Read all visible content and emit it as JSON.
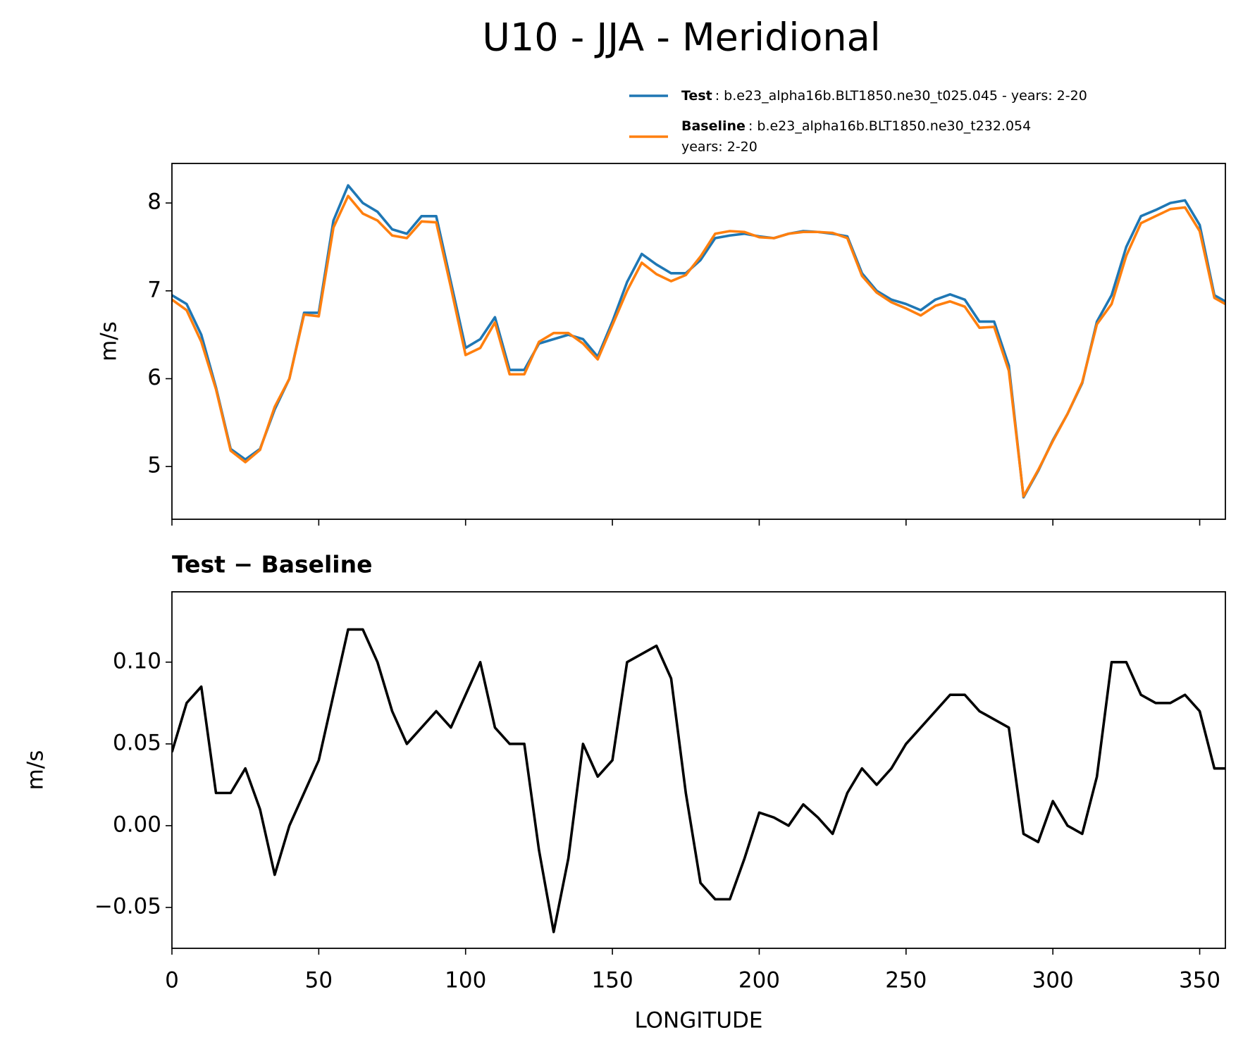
{
  "title": "U10 - JJA - Meridional",
  "chart_data": [
    {
      "type": "line",
      "ylabel": "m/s",
      "xlim": [
        0,
        358.75
      ],
      "xticks": [
        0,
        50,
        100,
        150,
        200,
        250,
        300,
        350
      ],
      "xtick_labels": false,
      "ylim": [
        4.4,
        8.45
      ],
      "yticks": [
        5,
        6,
        7,
        8
      ],
      "legend": "above right",
      "x": [
        0,
        5,
        10,
        15,
        20,
        25,
        30,
        35,
        40,
        45,
        50,
        55,
        60,
        65,
        70,
        75,
        80,
        85,
        90,
        95,
        100,
        105,
        110,
        115,
        120,
        125,
        130,
        135,
        140,
        145,
        150,
        155,
        160,
        165,
        170,
        175,
        180,
        185,
        190,
        195,
        200,
        205,
        210,
        215,
        220,
        225,
        230,
        235,
        240,
        245,
        250,
        255,
        260,
        265,
        270,
        275,
        280,
        285,
        290,
        295,
        300,
        305,
        310,
        315,
        320,
        325,
        330,
        335,
        340,
        345,
        350,
        355,
        358.75
      ],
      "series": [
        {
          "name": "Test",
          "description": [
            ": b.e23_alpha16b.BLT1850.ne30_t025.045 - years: 2-20"
          ],
          "color": "#1f77b4",
          "values": [
            6.95,
            6.85,
            6.5,
            5.9,
            5.2,
            5.08,
            5.2,
            5.65,
            6.0,
            6.75,
            6.75,
            7.8,
            8.2,
            8.0,
            7.9,
            7.7,
            7.65,
            7.85,
            7.85,
            7.1,
            6.35,
            6.45,
            6.7,
            6.1,
            6.1,
            6.4,
            6.45,
            6.5,
            6.45,
            6.25,
            6.65,
            7.1,
            7.42,
            7.3,
            7.2,
            7.2,
            7.35,
            7.6,
            7.63,
            7.65,
            7.62,
            7.6,
            7.65,
            7.68,
            7.67,
            7.65,
            7.62,
            7.2,
            7.0,
            6.9,
            6.85,
            6.78,
            6.9,
            6.96,
            6.9,
            6.65,
            6.65,
            6.15,
            4.65,
            4.95,
            5.3,
            5.6,
            5.95,
            6.65,
            6.95,
            7.5,
            7.85,
            7.92,
            8.0,
            8.03,
            7.75,
            6.95,
            6.88
          ]
        },
        {
          "name": "Baseline",
          "description": [
            ": b.e23_alpha16b.BLT1850.ne30_t232.054",
            "years: 2-20"
          ],
          "color": "#ff7f0e",
          "values": [
            6.9,
            6.78,
            6.42,
            5.88,
            5.18,
            5.05,
            5.19,
            5.68,
            6.0,
            6.73,
            6.71,
            7.72,
            8.08,
            7.88,
            7.8,
            7.63,
            7.6,
            7.79,
            7.78,
            7.04,
            6.27,
            6.35,
            6.64,
            6.05,
            6.05,
            6.42,
            6.52,
            6.52,
            6.4,
            6.22,
            6.61,
            7.0,
            7.32,
            7.19,
            7.11,
            7.18,
            7.39,
            7.65,
            7.68,
            7.67,
            7.61,
            7.6,
            7.65,
            7.67,
            7.67,
            7.66,
            7.6,
            7.17,
            6.98,
            6.87,
            6.8,
            6.72,
            6.83,
            6.88,
            6.82,
            6.58,
            6.59,
            6.09,
            4.66,
            4.96,
            5.29,
            5.6,
            5.96,
            6.62,
            6.85,
            7.4,
            7.77,
            7.85,
            7.93,
            7.95,
            7.68,
            6.92,
            6.85
          ]
        }
      ]
    },
    {
      "type": "line",
      "title": "Test − Baseline",
      "ylabel": "m/s",
      "xlabel": "LONGITUDE",
      "xlim": [
        0,
        358.75
      ],
      "xticks": [
        0,
        50,
        100,
        150,
        200,
        250,
        300,
        350
      ],
      "xtick_labels": true,
      "ylim": [
        -0.075,
        0.143
      ],
      "yticks": [
        {
          "value": -0.05,
          "label": "−0.05"
        },
        {
          "value": 0,
          "label": "0.00"
        },
        0.05,
        {
          "value": 0.1,
          "label": "0.10"
        }
      ],
      "x": [
        0,
        5,
        10,
        15,
        20,
        25,
        30,
        35,
        40,
        45,
        50,
        55,
        60,
        65,
        70,
        75,
        80,
        85,
        90,
        95,
        100,
        105,
        110,
        115,
        120,
        125,
        130,
        135,
        140,
        145,
        150,
        155,
        160,
        165,
        170,
        175,
        180,
        185,
        190,
        195,
        200,
        205,
        210,
        215,
        220,
        225,
        230,
        235,
        240,
        245,
        250,
        255,
        260,
        265,
        270,
        275,
        280,
        285,
        290,
        295,
        300,
        305,
        310,
        315,
        320,
        325,
        330,
        335,
        340,
        345,
        350,
        355,
        358.75
      ],
      "series": [
        {
          "color": "#000000",
          "values": [
            0.045,
            0.075,
            0.085,
            0.02,
            0.02,
            0.035,
            0.01,
            -0.03,
            0.0,
            0.02,
            0.04,
            0.08,
            0.12,
            0.12,
            0.1,
            0.07,
            0.05,
            0.06,
            0.07,
            0.06,
            0.08,
            0.1,
            0.06,
            0.05,
            0.05,
            -0.015,
            -0.065,
            -0.02,
            0.05,
            0.03,
            0.04,
            0.1,
            0.105,
            0.11,
            0.09,
            0.02,
            -0.035,
            -0.045,
            -0.045,
            -0.02,
            0.008,
            0.005,
            0.0,
            0.013,
            0.005,
            -0.005,
            0.02,
            0.035,
            0.025,
            0.035,
            0.05,
            0.06,
            0.07,
            0.08,
            0.08,
            0.07,
            0.065,
            0.06,
            -0.005,
            -0.01,
            0.015,
            0.0,
            -0.005,
            0.03,
            0.1,
            0.1,
            0.08,
            0.075,
            0.075,
            0.08,
            0.07,
            0.035,
            0.035
          ]
        }
      ]
    }
  ]
}
